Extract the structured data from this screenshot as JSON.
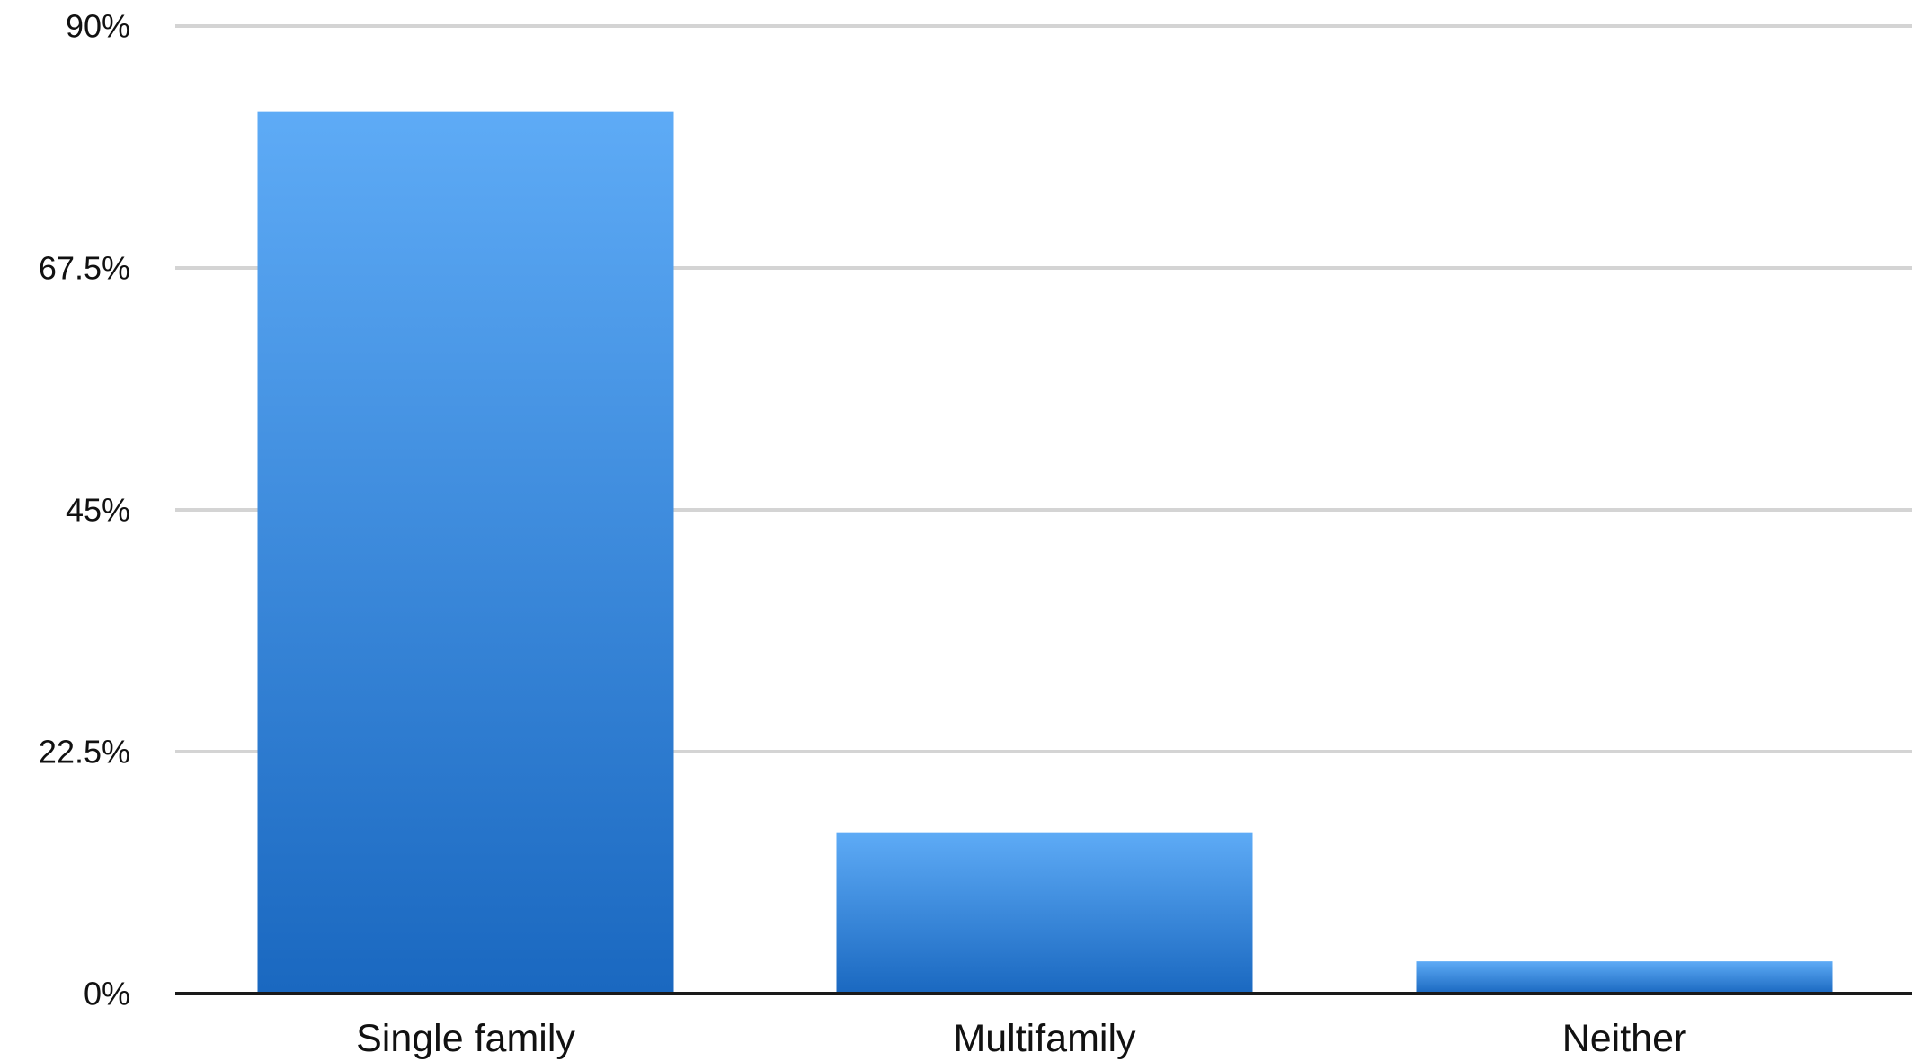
{
  "chart_data": {
    "type": "bar",
    "categories": [
      "Single family",
      "Multifamily",
      "Neither"
    ],
    "values": [
      82,
      15,
      3
    ],
    "ylim": [
      0,
      90
    ],
    "yticks": [
      0,
      22.5,
      45,
      67.5,
      90
    ],
    "ytick_labels": [
      "0%",
      "22.5%",
      "45%",
      "67.5%",
      "90%"
    ],
    "title": "",
    "xlabel": "",
    "ylabel": "",
    "grid": true,
    "legend": "none",
    "colors": {
      "bar_top": "#5eabf6",
      "bar_bottom": "#1a68c0",
      "grid": "#d4d4d4",
      "axis": "#1a1a1a"
    }
  }
}
